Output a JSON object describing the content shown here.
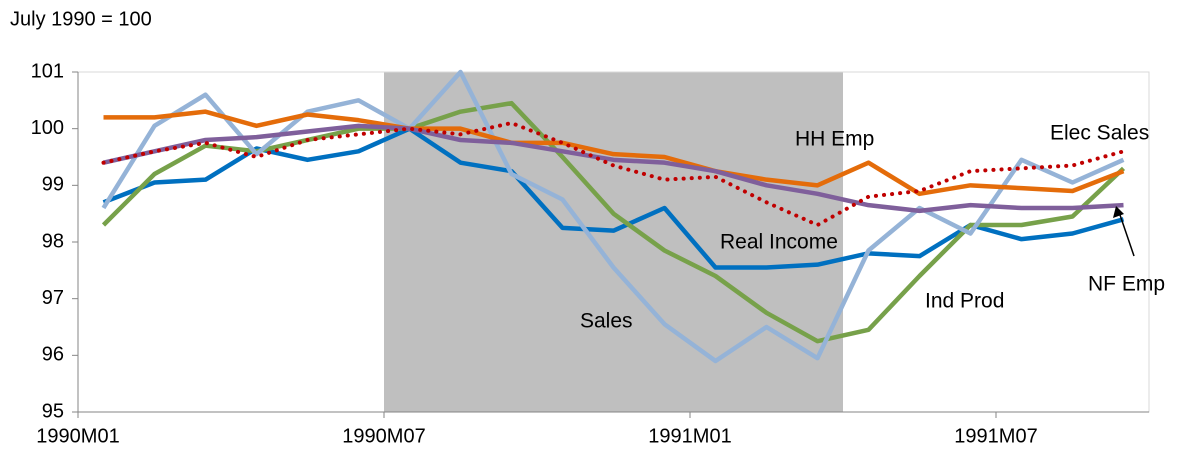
{
  "chart_data": {
    "type": "line",
    "y_label": "July 1990 = 100",
    "categories": [
      "1990M01",
      null,
      null,
      null,
      null,
      null,
      "1990M07",
      null,
      null,
      null,
      null,
      null,
      "1991M01",
      null,
      null,
      null,
      null,
      null,
      "1991M07",
      null,
      null
    ],
    "shaded_categories": [
      6,
      14
    ],
    "shade_color": "#bfbfbf",
    "ylim": [
      95,
      101
    ],
    "yticks": [
      95,
      96,
      97,
      98,
      99,
      100,
      101
    ],
    "series": [
      {
        "name": "Real Income",
        "color": "#0070c0",
        "label_color": "#0070c0",
        "values": [
          98.7,
          99.05,
          99.1,
          99.65,
          99.45,
          99.6,
          100.0,
          99.4,
          99.25,
          98.25,
          98.2,
          98.6,
          97.55,
          97.55,
          97.6,
          97.8,
          97.75,
          98.3,
          98.05,
          98.15,
          98.4
        ]
      },
      {
        "name": "Ind Prod",
        "color": "#77a14a",
        "label_color": "#4f7a28",
        "values": [
          98.3,
          99.2,
          99.7,
          99.6,
          99.8,
          100.0,
          100.0,
          100.3,
          100.45,
          99.5,
          98.5,
          97.85,
          97.4,
          96.75,
          96.25,
          96.45,
          97.4,
          98.3,
          98.3,
          98.45,
          99.3
        ]
      },
      {
        "name": "Sales",
        "color": "#95b3d7",
        "label_color": "#00b0f0",
        "values": [
          98.6,
          100.05,
          100.6,
          99.55,
          100.3,
          100.5,
          100.0,
          101.0,
          99.2,
          98.75,
          97.55,
          96.55,
          95.9,
          96.5,
          95.95,
          97.85,
          98.6,
          98.15,
          99.45,
          99.05,
          99.45
        ]
      },
      {
        "name": "HH Emp",
        "color": "#e46c0a",
        "label_color": "#e46c0a",
        "values": [
          100.2,
          100.2,
          100.3,
          100.05,
          100.25,
          100.15,
          100.0,
          100.0,
          99.75,
          99.75,
          99.55,
          99.5,
          99.25,
          99.1,
          99.0,
          99.4,
          98.85,
          99.0,
          98.95,
          98.9,
          99.25
        ]
      },
      {
        "name": "NF Emp",
        "color": "#7f5f9b",
        "label_color": "#7030a0",
        "values": [
          99.4,
          99.6,
          99.8,
          99.85,
          99.95,
          100.05,
          100.0,
          99.8,
          99.75,
          99.6,
          99.45,
          99.4,
          99.25,
          99.0,
          98.85,
          98.65,
          98.55,
          98.65,
          98.6,
          98.6,
          98.65
        ]
      },
      {
        "name": "Elec Sales",
        "color": "#c00000",
        "label_color": "#c00000",
        "dotted": true,
        "values": [
          99.4,
          99.6,
          99.75,
          99.5,
          99.8,
          99.9,
          100.0,
          99.9,
          100.1,
          99.75,
          99.35,
          99.1,
          99.15,
          98.7,
          98.3,
          98.8,
          98.9,
          99.25,
          99.3,
          99.35,
          99.6
        ]
      }
    ]
  }
}
